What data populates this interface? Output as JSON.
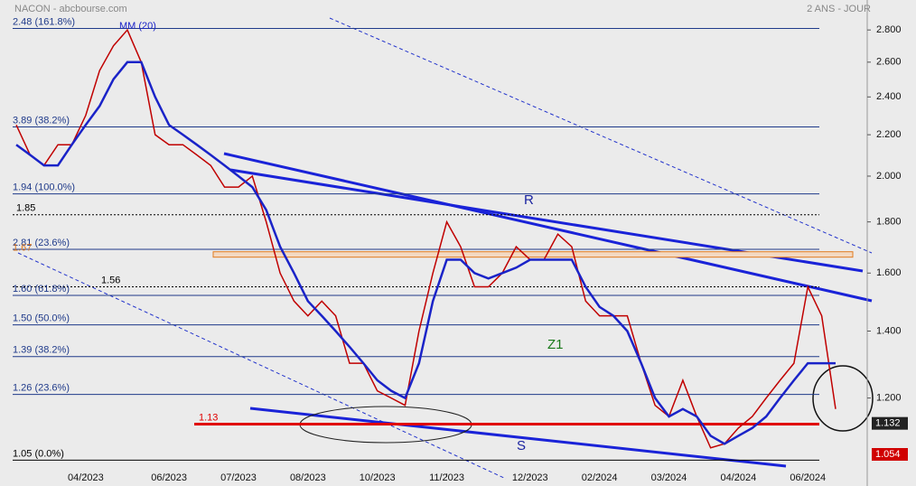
{
  "chart_data": {
    "type": "line",
    "title": "NACON - abcbourse.com",
    "subtitle": "2 ANS - JOUR",
    "log_scale": true,
    "ylim": [
      0.98,
      3.0
    ],
    "yticks": [
      {
        "value": 1.2,
        "label": "1.200"
      },
      {
        "value": 1.4,
        "label": "1.400"
      },
      {
        "value": 1.6,
        "label": "1.600"
      },
      {
        "value": 1.8,
        "label": "1.800"
      },
      {
        "value": 2.0,
        "label": "2.000"
      },
      {
        "value": 2.2,
        "label": "2.200"
      },
      {
        "value": 2.4,
        "label": "2.400"
      },
      {
        "value": 2.6,
        "label": "2.600"
      },
      {
        "value": 2.8,
        "label": "2.800"
      }
    ],
    "categories": [
      null,
      null,
      null,
      null,
      null,
      "04/2023",
      null,
      null,
      null,
      null,
      null,
      "06/2023",
      null,
      null,
      null,
      null,
      "07/2023",
      null,
      null,
      null,
      null,
      "08/2023",
      null,
      null,
      null,
      null,
      "10/2023",
      null,
      null,
      null,
      null,
      "11/2023",
      null,
      null,
      null,
      null,
      null,
      "12/2023",
      null,
      null,
      null,
      null,
      "02/2024",
      null,
      null,
      null,
      null,
      "03/2024",
      null,
      null,
      null,
      null,
      "04/2024",
      null,
      null,
      null,
      null,
      "06/2024",
      null,
      null
    ],
    "series": [
      {
        "color": "#c00000",
        "values": [
          2.25,
          2.1,
          2.05,
          2.15,
          2.15,
          2.3,
          2.55,
          2.7,
          2.8,
          2.6,
          2.2,
          2.15,
          2.15,
          2.1,
          2.05,
          1.95,
          1.95,
          2.0,
          1.8,
          1.6,
          1.5,
          1.45,
          1.5,
          1.45,
          1.3,
          1.3,
          1.22,
          1.2,
          1.18,
          1.4,
          1.6,
          1.8,
          1.7,
          1.55,
          1.55,
          1.6,
          1.7,
          1.65,
          1.65,
          1.75,
          1.7,
          1.5,
          1.45,
          1.45,
          1.45,
          1.3,
          1.18,
          1.15,
          1.25,
          1.15,
          1.07,
          1.08,
          1.12,
          1.15,
          1.2,
          1.25,
          1.3,
          1.55,
          1.45,
          1.17
        ]
      },
      {
        "name": "MM (20)",
        "color": "#1a23c8",
        "values": [
          2.15,
          2.1,
          2.05,
          2.05,
          2.15,
          2.25,
          2.35,
          2.5,
          2.6,
          2.6,
          2.4,
          2.25,
          2.2,
          2.15,
          2.1,
          2.05,
          2.0,
          1.95,
          1.85,
          1.7,
          1.6,
          1.5,
          1.45,
          1.4,
          1.35,
          1.3,
          1.25,
          1.22,
          1.2,
          1.3,
          1.5,
          1.65,
          1.65,
          1.6,
          1.58,
          1.6,
          1.62,
          1.65,
          1.65,
          1.65,
          1.65,
          1.55,
          1.48,
          1.45,
          1.4,
          1.3,
          1.2,
          1.15,
          1.17,
          1.15,
          1.1,
          1.08,
          1.1,
          1.12,
          1.15,
          1.2,
          1.25,
          1.3,
          1.3,
          1.3
        ]
      }
    ],
    "levels": [
      {
        "text": "2.48 (161.8%)",
        "level": 2.81,
        "style": "solid",
        "color": "#1f3a8a"
      },
      {
        "text": "3.89  (38.2%)",
        "level": 2.24,
        "style": "solid",
        "color": "#1f3a8a"
      },
      {
        "text": "1.94  (100.0%)",
        "level": 1.92,
        "style": "solid",
        "color": "#1f3a8a"
      },
      {
        "text": "1.85",
        "level": 1.83,
        "style": "dotted",
        "color": "#000000"
      },
      {
        "text": "2.81  (23.6%)",
        "level": 1.69,
        "style": "solid",
        "color": "#1f3a8a"
      },
      {
        "text": "1.67",
        "level": 1.67,
        "style": "band",
        "color": "#e07b20"
      },
      {
        "text": "1.56",
        "level": 1.55,
        "style": "dotted",
        "color": "#000000"
      },
      {
        "text": "1.60  (61.8%)",
        "level": 1.52,
        "style": "solid",
        "color": "#1f3a8a"
      },
      {
        "text": "1.50  (50.0%)",
        "level": 1.42,
        "style": "solid",
        "color": "#1f3a8a"
      },
      {
        "text": "1.39  (38.2%)",
        "level": 1.32,
        "style": "solid",
        "color": "#1f3a8a"
      },
      {
        "text": "1.26  (23.6%)",
        "level": 1.21,
        "style": "solid",
        "color": "#1f3a8a"
      },
      {
        "text": "1.13",
        "level": 1.13,
        "style": "thick",
        "color": "#e00000"
      },
      {
        "text": "1.05  (0.0%)",
        "level": 1.04,
        "style": "solid",
        "color": "#000000"
      }
    ],
    "annotations": [
      "R",
      "Z1",
      "S"
    ],
    "price_badges": [
      {
        "value": 1.132,
        "color": "#222222"
      },
      {
        "value": 1.054,
        "color": "#d00000"
      }
    ]
  }
}
